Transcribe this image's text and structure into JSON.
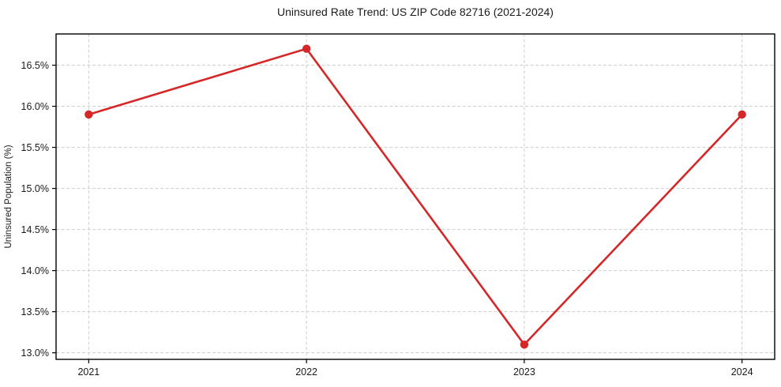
{
  "figure": {
    "background": "#ffffff"
  },
  "chart_data": {
    "type": "line",
    "title": "Uninsured Rate Trend: US ZIP Code 82716 (2021-2024)",
    "xlabel": "",
    "ylabel": "Uninsured Population (%)",
    "x": [
      2021,
      2022,
      2023,
      2024
    ],
    "x_tick_labels": [
      "2021",
      "2022",
      "2023",
      "2024"
    ],
    "values": [
      15.9,
      16.7,
      13.1,
      15.9
    ],
    "y_ticks": [
      13.0,
      13.5,
      14.0,
      14.5,
      15.0,
      15.5,
      16.0,
      16.5
    ],
    "y_tick_labels": [
      "13.0%",
      "13.5%",
      "14.0%",
      "14.5%",
      "15.0%",
      "15.5%",
      "16.0%",
      "16.5%"
    ],
    "xlim": [
      2020.85,
      2024.15
    ],
    "ylim": [
      12.92,
      16.88
    ],
    "grid": true,
    "grid_color": "#cdcdcd",
    "legend": "none",
    "line_color": "#d62728",
    "marker": "circle",
    "marker_radius": 5.2,
    "line_width": 2.6
  }
}
